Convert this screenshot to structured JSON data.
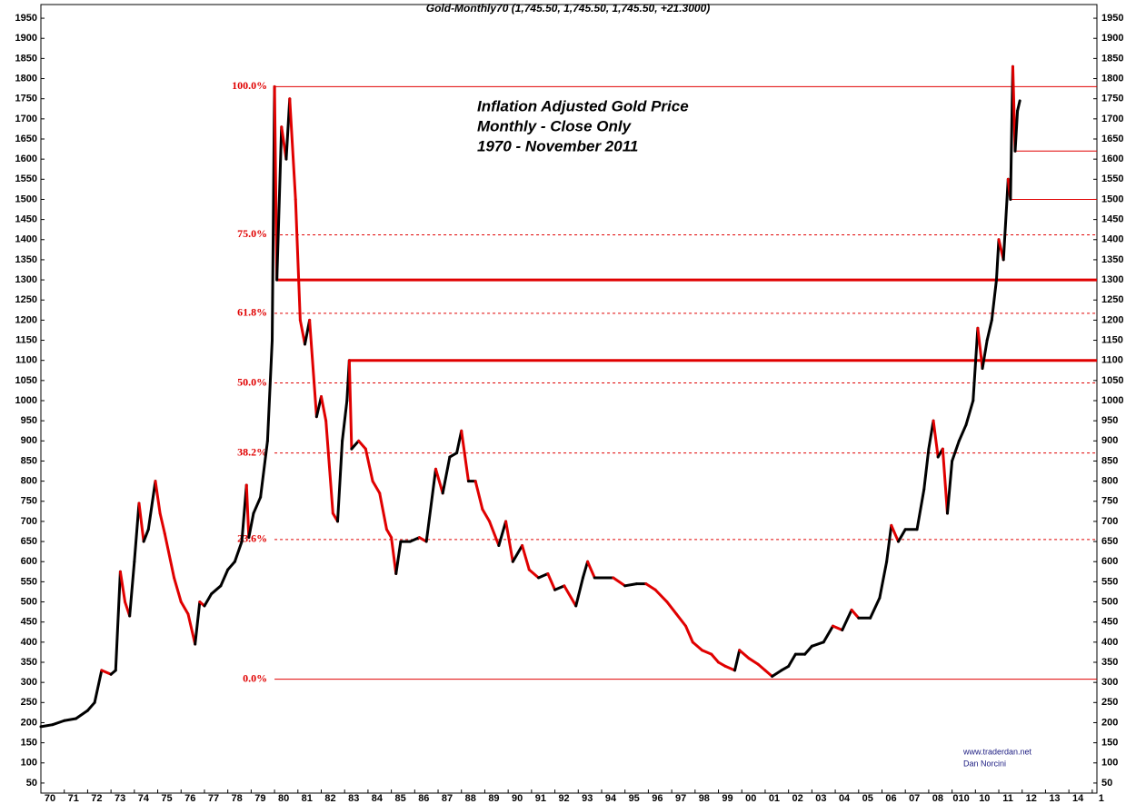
{
  "chart_data": {
    "type": "line",
    "title": "Gold-Monthly70 (1,745.50, 1,745.50, 1,745.50, +21.3000)",
    "annotations": [
      "Inflation Adjusted Gold Price",
      "Monthly - Close Only",
      "1970 - November 2011"
    ],
    "watermark": [
      "www.traderdan.net",
      "Dan Norcini"
    ],
    "xlim": [
      1970,
      2015.2
    ],
    "ylim": [
      25,
      1975
    ],
    "yticks": [
      50,
      100,
      150,
      200,
      250,
      300,
      350,
      400,
      450,
      500,
      550,
      600,
      650,
      700,
      750,
      800,
      850,
      900,
      950,
      1000,
      1050,
      1100,
      1150,
      1200,
      1250,
      1300,
      1350,
      1400,
      1450,
      1500,
      1550,
      1600,
      1650,
      1700,
      1750,
      1800,
      1850,
      1900,
      1950
    ],
    "xticks": [
      {
        "value": 1970,
        "label": "70"
      },
      {
        "value": 1971,
        "label": "71"
      },
      {
        "value": 1972,
        "label": "72"
      },
      {
        "value": 1973,
        "label": "73"
      },
      {
        "value": 1974,
        "label": "74"
      },
      {
        "value": 1975,
        "label": "75"
      },
      {
        "value": 1976,
        "label": "76"
      },
      {
        "value": 1977,
        "label": "77"
      },
      {
        "value": 1978,
        "label": "78"
      },
      {
        "value": 1979,
        "label": "79"
      },
      {
        "value": 1980,
        "label": "80"
      },
      {
        "value": 1981,
        "label": "81"
      },
      {
        "value": 1982,
        "label": "82"
      },
      {
        "value": 1983,
        "label": "83"
      },
      {
        "value": 1984,
        "label": "84"
      },
      {
        "value": 1985,
        "label": "85"
      },
      {
        "value": 1986,
        "label": "86"
      },
      {
        "value": 1987,
        "label": "87"
      },
      {
        "value": 1988,
        "label": "88"
      },
      {
        "value": 1989,
        "label": "89"
      },
      {
        "value": 1990,
        "label": "90"
      },
      {
        "value": 1991,
        "label": "91"
      },
      {
        "value": 1992,
        "label": "92"
      },
      {
        "value": 1993,
        "label": "93"
      },
      {
        "value": 1994,
        "label": "94"
      },
      {
        "value": 1995,
        "label": "95"
      },
      {
        "value": 1996,
        "label": "96"
      },
      {
        "value": 1997,
        "label": "97"
      },
      {
        "value": 1998,
        "label": "98"
      },
      {
        "value": 1999,
        "label": "99"
      },
      {
        "value": 2000,
        "label": "00"
      },
      {
        "value": 2001,
        "label": "01"
      },
      {
        "value": 2002,
        "label": "02"
      },
      {
        "value": 2003,
        "label": "03"
      },
      {
        "value": 2004,
        "label": "04"
      },
      {
        "value": 2005,
        "label": "05"
      },
      {
        "value": 2006,
        "label": "06"
      },
      {
        "value": 2007,
        "label": "07"
      },
      {
        "value": 2008,
        "label": "08"
      },
      {
        "value": 2009,
        "label": "010"
      },
      {
        "value": 2010,
        "label": "10"
      },
      {
        "value": 2011,
        "label": "11"
      },
      {
        "value": 2012,
        "label": "12"
      },
      {
        "value": 2013,
        "label": "13"
      },
      {
        "value": 2014,
        "label": "14"
      },
      {
        "value": 2015,
        "label": "1"
      }
    ],
    "up_color": "#000000",
    "down_color": "#e00000",
    "level_color": "#e00000",
    "series": [
      {
        "name": "Gold",
        "x": [
          1970.0,
          1970.5,
          1971.0,
          1971.5,
          1972.0,
          1972.3,
          1972.6,
          1973.0,
          1973.2,
          1973.4,
          1973.6,
          1973.8,
          1974.0,
          1974.2,
          1974.4,
          1974.6,
          1974.9,
          1975.1,
          1975.3,
          1975.7,
          1976.0,
          1976.3,
          1976.6,
          1976.8,
          1977.0,
          1977.3,
          1977.7,
          1978.0,
          1978.3,
          1978.6,
          1978.8,
          1978.9,
          1979.1,
          1979.4,
          1979.7,
          1979.9,
          1980.0,
          1980.1,
          1980.3,
          1980.5,
          1980.65,
          1980.9,
          1981.1,
          1981.3,
          1981.5,
          1981.8,
          1982.0,
          1982.2,
          1982.5,
          1982.7,
          1982.9,
          1983.1,
          1983.2,
          1983.3,
          1983.6,
          1983.9,
          1984.2,
          1984.5,
          1984.8,
          1985.0,
          1985.2,
          1985.4,
          1985.8,
          1986.2,
          1986.5,
          1986.9,
          1987.2,
          1987.5,
          1987.8,
          1988.0,
          1988.3,
          1988.6,
          1988.9,
          1989.2,
          1989.6,
          1989.9,
          1990.2,
          1990.6,
          1990.9,
          1991.3,
          1991.7,
          1992.0,
          1992.4,
          1992.9,
          1993.2,
          1993.4,
          1993.7,
          1994.0,
          1994.5,
          1995.0,
          1995.5,
          1995.9,
          1996.3,
          1996.8,
          1997.2,
          1997.6,
          1997.9,
          1998.3,
          1998.7,
          1999.0,
          1999.3,
          1999.7,
          1999.9,
          2000.3,
          2000.7,
          2001.0,
          2001.3,
          2001.7,
          2002.0,
          2002.3,
          2002.7,
          2003.0,
          2003.5,
          2003.9,
          2004.3,
          2004.7,
          2005.0,
          2005.5,
          2005.9,
          2006.2,
          2006.4,
          2006.7,
          2007.0,
          2007.5,
          2007.8,
          2008.0,
          2008.2,
          2008.4,
          2008.6,
          2008.8,
          2009.0,
          2009.3,
          2009.6,
          2009.9,
          2010.1,
          2010.3,
          2010.5,
          2010.7,
          2010.9,
          2011.0,
          2011.2,
          2011.4,
          2011.5,
          2011.6,
          2011.7,
          2011.8,
          2011.9
        ],
        "values": [
          190,
          195,
          205,
          210,
          230,
          250,
          330,
          320,
          330,
          575,
          500,
          465,
          600,
          745,
          650,
          680,
          800,
          720,
          670,
          560,
          500,
          470,
          395,
          500,
          490,
          520,
          540,
          580,
          600,
          650,
          790,
          660,
          720,
          760,
          900,
          1150,
          1780,
          1300,
          1680,
          1600,
          1750,
          1500,
          1200,
          1140,
          1200,
          960,
          1010,
          950,
          720,
          700,
          900,
          1000,
          1100,
          880,
          900,
          880,
          800,
          770,
          680,
          660,
          570,
          650,
          650,
          660,
          650,
          830,
          770,
          860,
          870,
          925,
          800,
          800,
          730,
          700,
          640,
          700,
          600,
          640,
          580,
          560,
          570,
          530,
          540,
          490,
          560,
          600,
          560,
          560,
          560,
          540,
          545,
          545,
          530,
          500,
          470,
          440,
          400,
          380,
          370,
          350,
          340,
          330,
          380,
          360,
          345,
          330,
          315,
          330,
          340,
          370,
          370,
          390,
          400,
          440,
          430,
          480,
          460,
          460,
          510,
          600,
          690,
          650,
          680,
          680,
          780,
          880,
          950,
          860,
          880,
          720,
          850,
          900,
          940,
          1000,
          1180,
          1080,
          1150,
          1200,
          1300,
          1400,
          1350,
          1550,
          1500,
          1830,
          1620,
          1720,
          1745
        ]
      }
    ],
    "levels": [
      {
        "label": "100.0%",
        "value": 1780,
        "dashed": false
      },
      {
        "label": "75.0%",
        "value": 1412,
        "dashed": true
      },
      {
        "label": "61.8%",
        "value": 1217,
        "dashed": true
      },
      {
        "label": "50.0%",
        "value": 1044,
        "dashed": true
      },
      {
        "label": "38.2%",
        "value": 870,
        "dashed": true
      },
      {
        "label": "23.6%",
        "value": 655,
        "dashed": true
      },
      {
        "label": "0.0%",
        "value": 308,
        "dashed": false
      }
    ],
    "levels_from": 1980.0,
    "hlines": [
      {
        "value": 1300,
        "from": 1980.1,
        "width": 3
      },
      {
        "value": 1100,
        "from": 1983.2,
        "width": 3
      },
      {
        "value": 1620,
        "from": 2011.7,
        "width": 1
      },
      {
        "value": 1500,
        "from": 2011.5,
        "width": 1
      }
    ]
  }
}
